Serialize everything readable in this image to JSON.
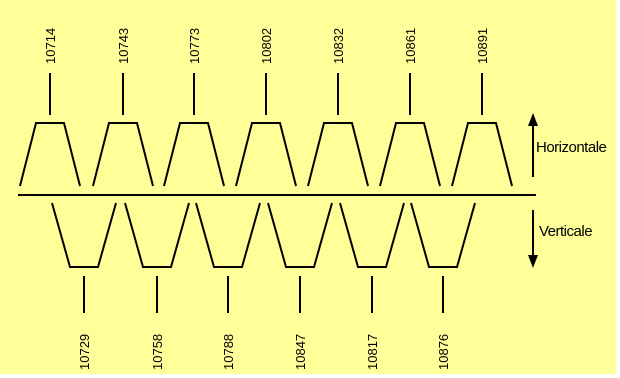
{
  "top_labels": [
    "10714",
    "10743",
    "10773",
    "10802",
    "10832",
    "10861",
    "10891"
  ],
  "bottom_labels": [
    "10729",
    "10758",
    "10788",
    "10847",
    "10817",
    "10876"
  ],
  "arrow_up_label": "Horizontale",
  "arrow_down_label": "Verticale",
  "colors": {
    "background": "#ffff99",
    "stroke": "#000000"
  }
}
